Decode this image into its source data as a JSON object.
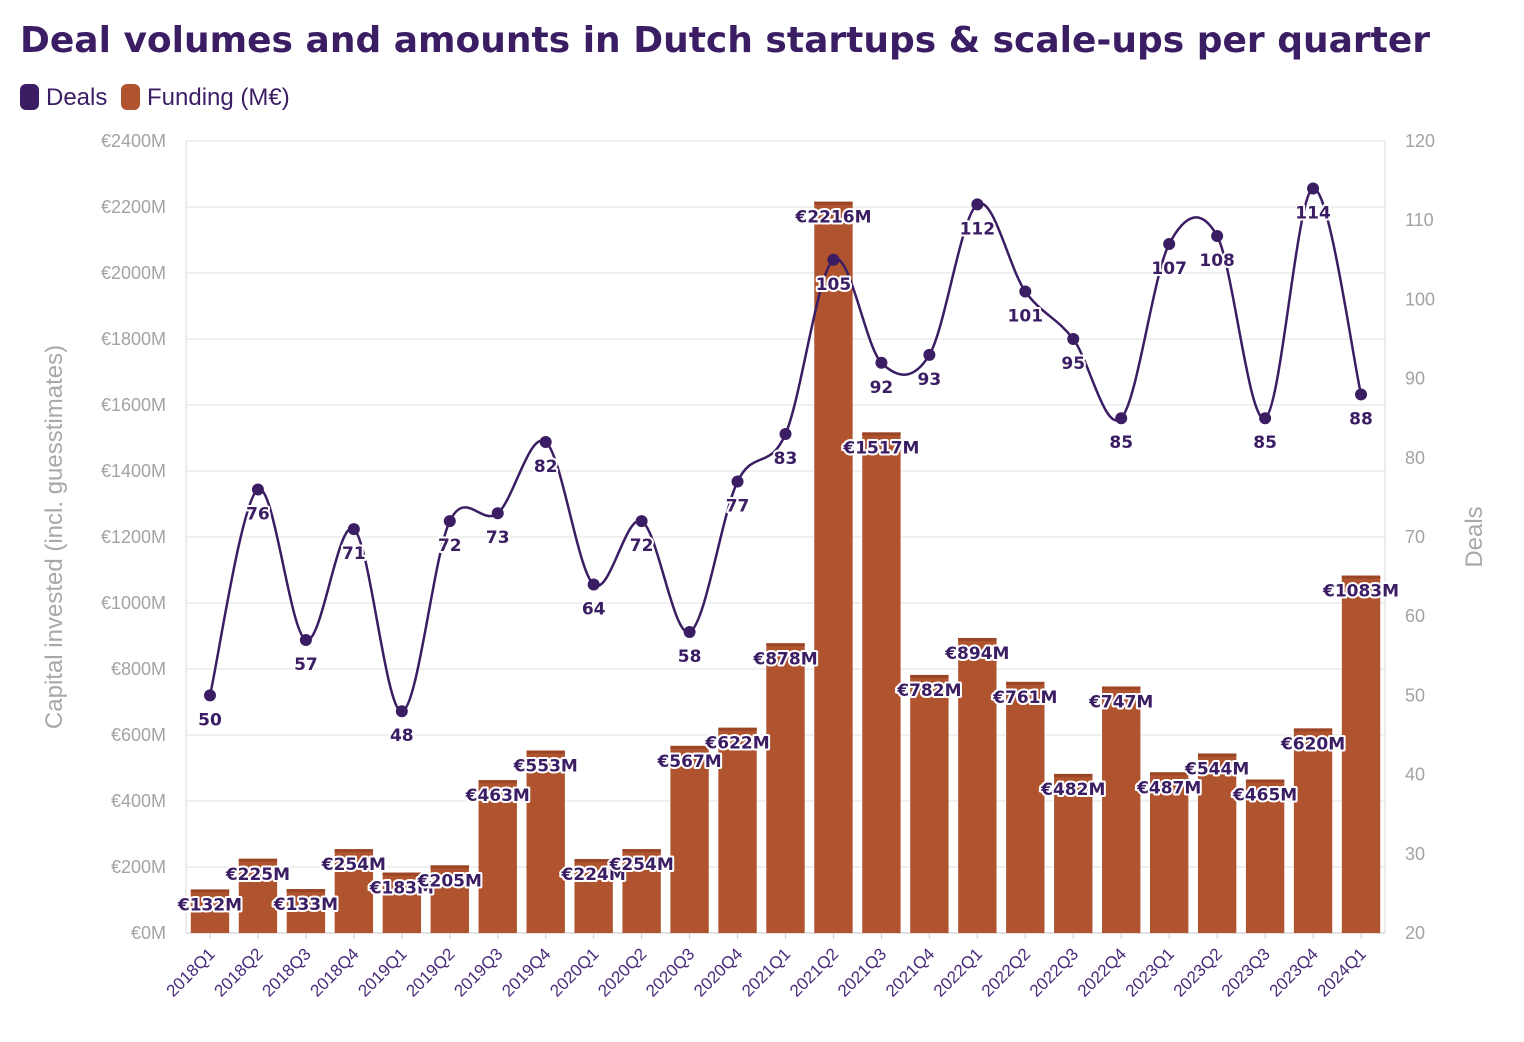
{
  "title": "Deal volumes and amounts in Dutch startups & scale-ups per quarter",
  "legend": [
    {
      "label": "Deals",
      "color": "#3b1d63"
    },
    {
      "label": "Funding (M€)",
      "color": "#b0532f"
    }
  ],
  "chart_data": {
    "type": "bar",
    "title": "Deal volumes and amounts in Dutch startups & scale-ups per quarter",
    "categories": [
      "2018Q1",
      "2018Q2",
      "2018Q3",
      "2018Q4",
      "2019Q1",
      "2019Q2",
      "2019Q3",
      "2019Q4",
      "2020Q1",
      "2020Q2",
      "2020Q3",
      "2020Q4",
      "2021Q1",
      "2021Q2",
      "2021Q3",
      "2021Q4",
      "2022Q1",
      "2022Q2",
      "2022Q3",
      "2022Q4",
      "2023Q1",
      "2023Q2",
      "2023Q3",
      "2023Q4",
      "2024Q1"
    ],
    "series": [
      {
        "name": "Funding (M€)",
        "type": "bar",
        "axis": "left",
        "color": "#b0532f",
        "values": [
          132,
          225,
          133,
          254,
          183,
          205,
          463,
          553,
          224,
          254,
          567,
          622,
          878,
          2216,
          1517,
          782,
          894,
          761,
          482,
          747,
          487,
          544,
          465,
          620,
          1083
        ],
        "labels": [
          "€132M",
          "€225M",
          "€133M",
          "€254M",
          "€183M",
          "€205M",
          "€463M",
          "€553M",
          "€224M",
          "€254M",
          "€567M",
          "€622M",
          "€878M",
          "€2216M",
          "€1517M",
          "€782M",
          "€894M",
          "€761M",
          "€482M",
          "€747M",
          "€487M",
          "€544M",
          "€465M",
          "€620M",
          "€1083M"
        ]
      },
      {
        "name": "Deals",
        "type": "line",
        "axis": "right",
        "color": "#3b1d63",
        "values": [
          50,
          76,
          57,
          71,
          48,
          72,
          73,
          82,
          64,
          72,
          58,
          77,
          83,
          105,
          92,
          93,
          112,
          101,
          95,
          85,
          107,
          108,
          85,
          114,
          88
        ]
      }
    ],
    "ylabel": "Capital invested (incl. guesstimates)",
    "y2label": "Deals",
    "ylim": [
      0,
      2400
    ],
    "y2lim": [
      20,
      120
    ],
    "yticks": [
      0,
      200,
      400,
      600,
      800,
      1000,
      1200,
      1400,
      1600,
      1800,
      2000,
      2200,
      2400
    ],
    "yticklabels": [
      "€0M",
      "€200M",
      "€400M",
      "€600M",
      "€800M",
      "€1000M",
      "€1200M",
      "€1400M",
      "€1600M",
      "€1800M",
      "€2000M",
      "€2200M",
      "€2400M"
    ],
    "y2ticks": [
      20,
      30,
      40,
      50,
      60,
      70,
      80,
      90,
      100,
      110,
      120
    ],
    "y2ticklabels": [
      "20",
      "30",
      "40",
      "50",
      "60",
      "70",
      "80",
      "90",
      "100",
      "110",
      "120"
    ],
    "grid": true,
    "legend_position": "top-left"
  }
}
